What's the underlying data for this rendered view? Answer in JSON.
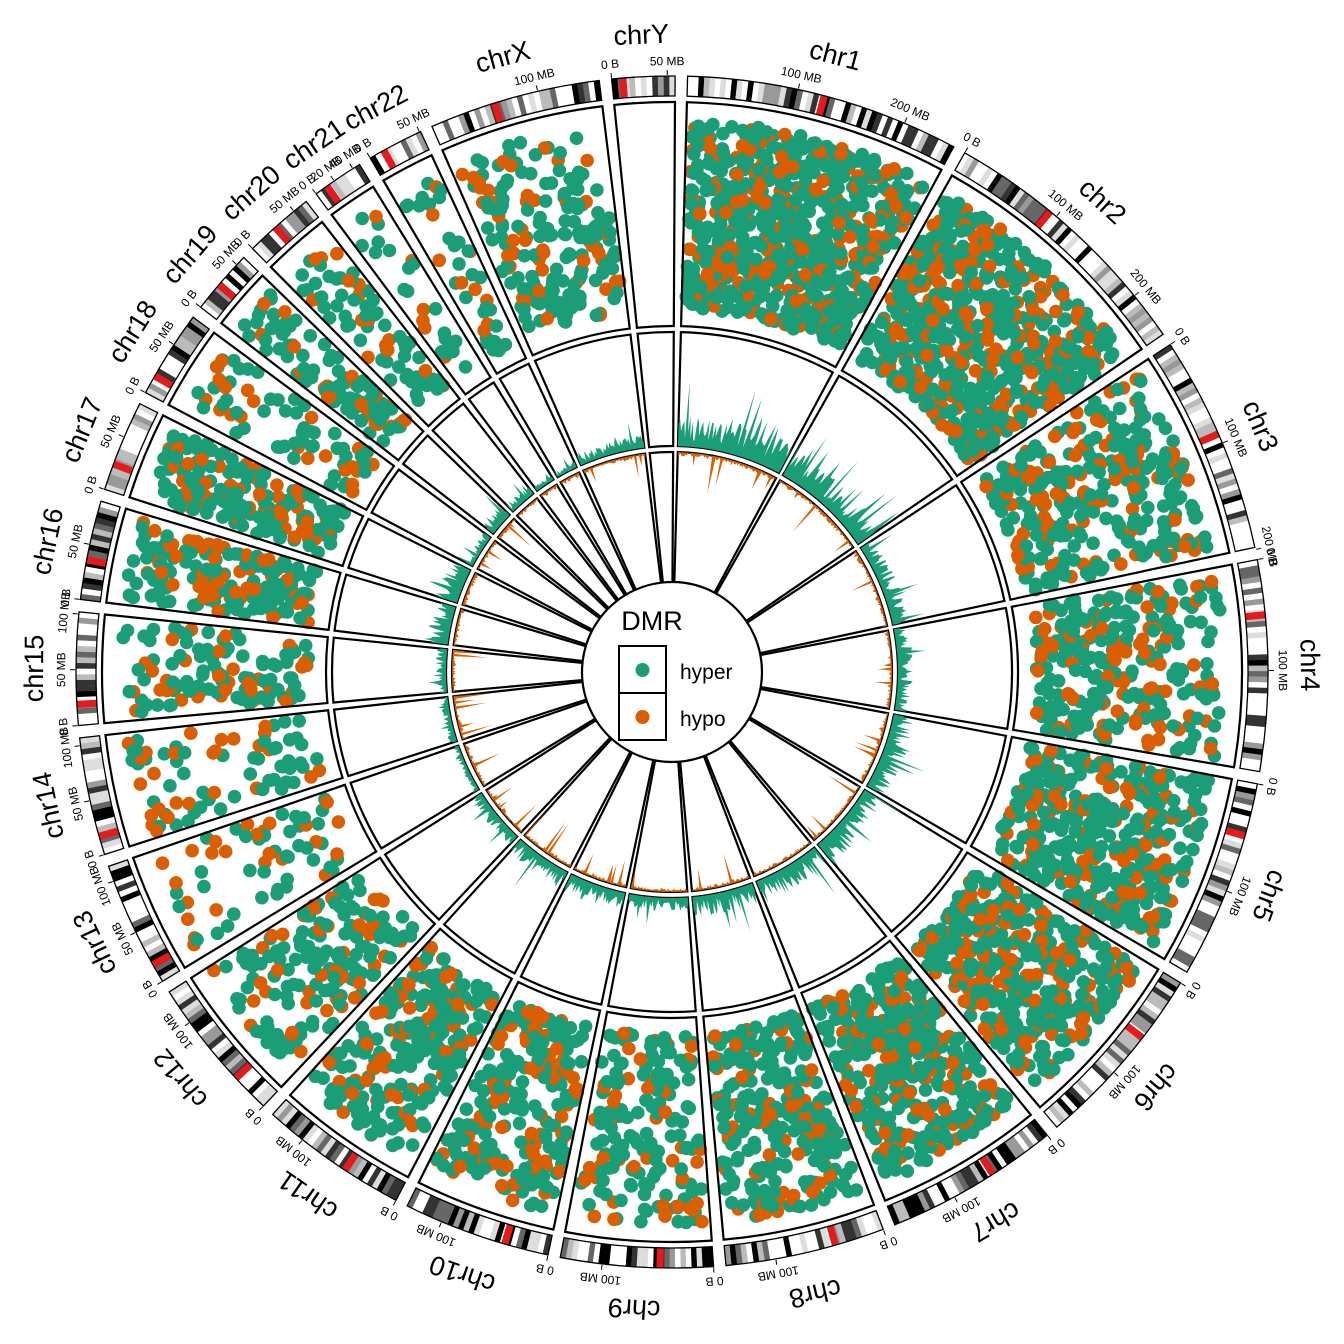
{
  "chart_data": {
    "type": "circos",
    "title": "",
    "chromosomes": [
      {
        "name": "chr1",
        "length_mb": 249,
        "ticks": [
          {
            "mb": 100,
            "label": "100 MB"
          },
          {
            "mb": 200,
            "label": "200 MB"
          }
        ],
        "centromere_mb": 124
      },
      {
        "name": "chr2",
        "length_mb": 243,
        "ticks": [
          {
            "mb": 0,
            "label": "0 B"
          },
          {
            "mb": 100,
            "label": "100 MB"
          },
          {
            "mb": 200,
            "label": "200 MB"
          }
        ],
        "centromere_mb": 93
      },
      {
        "name": "chr3",
        "length_mb": 198,
        "ticks": [
          {
            "mb": 0,
            "label": "0 B"
          },
          {
            "mb": 100,
            "label": "100 MB"
          },
          {
            "mb": 200,
            "label": "200 MB"
          }
        ],
        "centromere_mb": 91
      },
      {
        "name": "chr4",
        "length_mb": 191,
        "ticks": [
          {
            "mb": 0,
            "label": "0 B"
          },
          {
            "mb": 100,
            "label": "100 MB"
          }
        ],
        "centromere_mb": 50
      },
      {
        "name": "chr5",
        "length_mb": 181,
        "ticks": [
          {
            "mb": 0,
            "label": "0 B"
          },
          {
            "mb": 100,
            "label": "100 MB"
          }
        ],
        "centromere_mb": 48
      },
      {
        "name": "chr6",
        "length_mb": 171,
        "ticks": [
          {
            "mb": 0,
            "label": "0 B"
          },
          {
            "mb": 100,
            "label": "100 MB"
          }
        ],
        "centromere_mb": 60
      },
      {
        "name": "chr7",
        "length_mb": 159,
        "ticks": [
          {
            "mb": 0,
            "label": "0 B"
          },
          {
            "mb": 100,
            "label": "100 MB"
          }
        ],
        "centromere_mb": 60
      },
      {
        "name": "chr8",
        "length_mb": 145,
        "ticks": [
          {
            "mb": 0,
            "label": "0 B"
          },
          {
            "mb": 100,
            "label": "100 MB"
          }
        ],
        "centromere_mb": 45
      },
      {
        "name": "chr9",
        "length_mb": 138,
        "ticks": [
          {
            "mb": 0,
            "label": "0 B"
          },
          {
            "mb": 100,
            "label": "100 MB"
          }
        ],
        "centromere_mb": 48
      },
      {
        "name": "chr10",
        "length_mb": 134,
        "ticks": [
          {
            "mb": 0,
            "label": "0 B"
          },
          {
            "mb": 100,
            "label": "100 MB"
          }
        ],
        "centromere_mb": 40
      },
      {
        "name": "chr11",
        "length_mb": 135,
        "ticks": [
          {
            "mb": 0,
            "label": "0 B"
          },
          {
            "mb": 100,
            "label": "100 MB"
          }
        ],
        "centromere_mb": 53
      },
      {
        "name": "chr12",
        "length_mb": 133,
        "ticks": [
          {
            "mb": 0,
            "label": "0 B"
          },
          {
            "mb": 100,
            "label": "100 MB"
          }
        ],
        "centromere_mb": 35
      },
      {
        "name": "chr13",
        "length_mb": 114,
        "ticks": [
          {
            "mb": 0,
            "label": "0 B"
          },
          {
            "mb": 50,
            "label": "50 MB"
          },
          {
            "mb": 100,
            "label": "100 MB"
          }
        ],
        "centromere_mb": 17
      },
      {
        "name": "chr14",
        "length_mb": 107,
        "ticks": [
          {
            "mb": 0,
            "label": "0 B"
          },
          {
            "mb": 50,
            "label": "50 MB"
          },
          {
            "mb": 100,
            "label": "100 MB"
          }
        ],
        "centromere_mb": 17
      },
      {
        "name": "chr15",
        "length_mb": 102,
        "ticks": [
          {
            "mb": 0,
            "label": "0 B"
          },
          {
            "mb": 50,
            "label": "50 MB"
          },
          {
            "mb": 100,
            "label": "100 MB"
          }
        ],
        "centromere_mb": 19
      },
      {
        "name": "chr16",
        "length_mb": 90,
        "ticks": [
          {
            "mb": 0,
            "label": "0 B"
          },
          {
            "mb": 50,
            "label": "50 MB"
          }
        ],
        "centromere_mb": 36
      },
      {
        "name": "chr17",
        "length_mb": 83,
        "ticks": [
          {
            "mb": 0,
            "label": "0 B"
          },
          {
            "mb": 50,
            "label": "50 MB"
          }
        ],
        "centromere_mb": 24
      },
      {
        "name": "chr18",
        "length_mb": 80,
        "ticks": [
          {
            "mb": 0,
            "label": "0 B"
          },
          {
            "mb": 50,
            "label": "50 MB"
          }
        ],
        "centromere_mb": 17
      },
      {
        "name": "chr19",
        "length_mb": 59,
        "ticks": [
          {
            "mb": 0,
            "label": "0 B"
          },
          {
            "mb": 50,
            "label": "50 MB"
          }
        ],
        "centromere_mb": 26
      },
      {
        "name": "chr20",
        "length_mb": 64,
        "ticks": [
          {
            "mb": 0,
            "label": "0 B"
          },
          {
            "mb": 50,
            "label": "50 MB"
          }
        ],
        "centromere_mb": 28
      },
      {
        "name": "chr21",
        "length_mb": 47,
        "ticks": [
          {
            "mb": 0,
            "label": "0 B"
          },
          {
            "mb": 20,
            "label": "20 MB"
          },
          {
            "mb": 40,
            "label": "40 MB"
          }
        ],
        "centromere_mb": 12
      },
      {
        "name": "chr22",
        "length_mb": 51,
        "ticks": [
          {
            "mb": 0,
            "label": "0 B"
          },
          {
            "mb": 50,
            "label": "50 MB"
          }
        ],
        "centromere_mb": 14
      },
      {
        "name": "chrX",
        "length_mb": 156,
        "ticks": [
          {
            "mb": 100,
            "label": "100 MB"
          }
        ],
        "centromere_mb": 60
      },
      {
        "name": "chrY",
        "length_mb": 57,
        "ticks": [
          {
            "mb": 0,
            "label": "0 B"
          },
          {
            "mb": 50,
            "label": "50 MB"
          }
        ],
        "centromere_mb": 10
      }
    ],
    "dmr_density": {
      "chr1": 34,
      "chr2": 30,
      "chr3": 18,
      "chr4": 16,
      "chr5": 24,
      "chr6": 26,
      "chr7": 26,
      "chr8": 22,
      "chr9": 14,
      "chr10": 20,
      "chr11": 20,
      "chr12": 14,
      "chr13": 6,
      "chr14": 8,
      "chr15": 12,
      "chr16": 22,
      "chr17": 26,
      "chr18": 10,
      "chr19": 18,
      "chr20": 12,
      "chr21": 6,
      "chr22": 8,
      "chrX": 14,
      "chrY": 0
    },
    "series": [
      {
        "name": "hyper",
        "color": "#1b9e77"
      },
      {
        "name": "hypo",
        "color": "#d95f02"
      }
    ],
    "legend": {
      "title": "DMR",
      "position": "center",
      "items": [
        "hyper",
        "hypo"
      ]
    }
  }
}
